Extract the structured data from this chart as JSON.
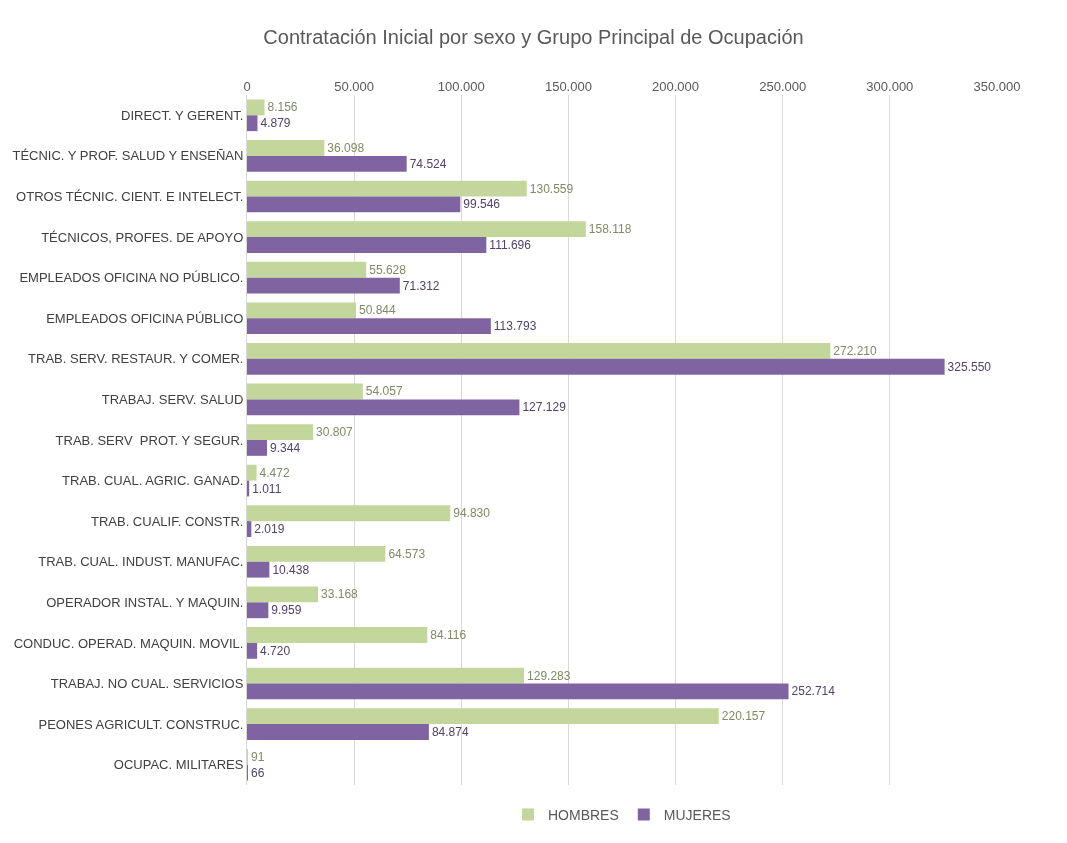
{
  "chart_data": {
    "type": "bar",
    "orientation": "horizontal",
    "title": "Contratación Inicial por sexo y Grupo Principal de Ocupación",
    "categories": [
      "DIRECT. Y GERENT.",
      "TÉCNIC. Y PROF. SALUD Y ENSEÑAN",
      "OTROS TÉCNIC. CIENT. E INTELECT.",
      "TÉCNICOS, PROFES. DE APOYO",
      "EMPLEADOS OFICINA NO PÚBLICO.",
      "EMPLEADOS OFICINA PÚBLICO",
      "TRAB. SERV. RESTAUR. Y COMER.",
      "TRABAJ. SERV. SALUD",
      "TRAB. SERV  PROT. Y SEGUR.",
      "TRAB. CUAL. AGRIC. GANAD.",
      "TRAB. CUALIF. CONSTR.",
      "TRAB. CUAL. INDUST. MANUFAC.",
      "OPERADOR INSTAL. Y MAQUIN.",
      "CONDUC. OPERAD. MAQUIN. MOVIL.",
      "TRABAJ. NO CUAL. SERVICIOS",
      "PEONES AGRICULT. CONSTRUC.",
      "OCUPAC. MILITARES"
    ],
    "series": [
      {
        "name": "HOMBRES",
        "color": "#c3d69b",
        "values": [
          8156,
          36098,
          130559,
          158118,
          55628,
          50844,
          272210,
          54057,
          30807,
          4472,
          94830,
          64573,
          33168,
          84116,
          129283,
          220157,
          91
        ],
        "value_labels": [
          "8.156",
          "36.098",
          "130.559",
          "158.118",
          "55.628",
          "50.844",
          "272.210",
          "54.057",
          "30.807",
          "4.472",
          "94.830",
          "64.573",
          "33.168",
          "84.116",
          "129.283",
          "220.157",
          "91"
        ]
      },
      {
        "name": "MUJERES",
        "color": "#8064a2",
        "values": [
          4879,
          74524,
          99546,
          111696,
          71312,
          113793,
          325550,
          127129,
          9344,
          1011,
          2019,
          10438,
          9959,
          4720,
          252714,
          84874,
          66
        ],
        "value_labels": [
          "4.879",
          "74.524",
          "99.546",
          "111.696",
          "71.312",
          "113.793",
          "325.550",
          "127.129",
          "9.344",
          "1.011",
          "2.019",
          "10.438",
          "9.959",
          "4.720",
          "252.714",
          "84.874",
          "66"
        ]
      }
    ],
    "xlim": [
      0,
      350000
    ],
    "xticks": [
      0,
      {
        "value": 50000,
        "label": "50.000"
      },
      {
        "value": 100000,
        "label": "100.000"
      },
      {
        "value": 150000,
        "label": "150.000"
      },
      {
        "value": 200000,
        "label": "200.000"
      },
      {
        "value": 250000,
        "label": "250.000"
      },
      {
        "value": 300000,
        "label": "300.000"
      },
      {
        "value": 350000,
        "label": "350.000"
      }
    ],
    "grid": "x",
    "legend": "bottom"
  }
}
